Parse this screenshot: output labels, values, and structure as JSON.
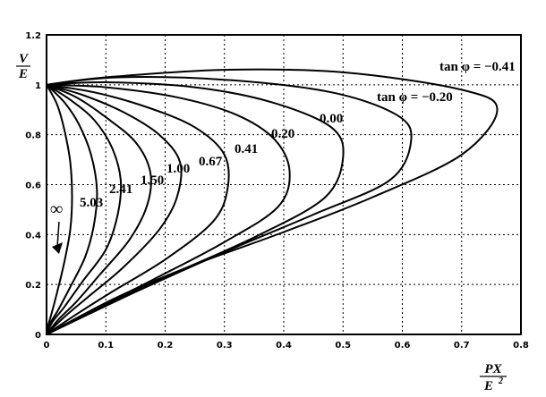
{
  "chart_data": {
    "type": "line",
    "title": "",
    "xlabel_num": "PX",
    "xlabel_den": "E",
    "xlabel_den_exp": "2",
    "ylabel_num": "V",
    "ylabel_den": "E",
    "xlim": [
      0,
      0.8
    ],
    "ylim": [
      0,
      1.2
    ],
    "x_ticks": [
      "0",
      "0.1",
      "0.2",
      "0.3",
      "0.4",
      "0.5",
      "0.6",
      "0.7",
      "0.8"
    ],
    "y_ticks": [
      "0",
      "0.2",
      "0.4",
      "0.6",
      "0.8",
      "1",
      "1.2"
    ],
    "grid": true,
    "annotation_tan_neg041": "tan φ = −0.41",
    "annotation_tan_neg020": "tan φ = −0.20",
    "annotation_infinity": "∞",
    "series": [
      {
        "name": "-0.41",
        "x": [
          0,
          0.1,
          0.3,
          0.5,
          0.7,
          0.76,
          0.7,
          0.55,
          0.4,
          0.25,
          0.12,
          0
        ],
        "y": [
          1.0,
          1.03,
          1.06,
          1.05,
          0.98,
          0.9,
          0.72,
          0.55,
          0.41,
          0.28,
          0.15,
          0
        ]
      },
      {
        "name": "-0.20",
        "x": [
          0,
          0.12,
          0.3,
          0.48,
          0.59,
          0.615,
          0.58,
          0.45,
          0.3,
          0.15,
          0
        ],
        "y": [
          1.0,
          1.03,
          1.02,
          0.97,
          0.88,
          0.78,
          0.62,
          0.48,
          0.33,
          0.17,
          0
        ]
      },
      {
        "name": "0.00",
        "x": [
          0,
          0.1,
          0.25,
          0.38,
          0.48,
          0.5,
          0.47,
          0.36,
          0.22,
          0.1,
          0
        ],
        "y": [
          1.0,
          1.01,
          0.99,
          0.93,
          0.83,
          0.71,
          0.55,
          0.4,
          0.25,
          0.12,
          0
        ]
      },
      {
        "name": "0.20",
        "x": [
          0,
          0.1,
          0.22,
          0.32,
          0.385,
          0.41,
          0.39,
          0.3,
          0.18,
          0.08,
          0
        ],
        "y": [
          1.0,
          0.99,
          0.95,
          0.88,
          0.78,
          0.65,
          0.51,
          0.37,
          0.22,
          0.1,
          0
        ]
      },
      {
        "name": "0.41",
        "x": [
          0,
          0.08,
          0.17,
          0.25,
          0.3,
          0.305,
          0.28,
          0.2,
          0.11,
          0.05,
          0
        ],
        "y": [
          1.0,
          0.97,
          0.91,
          0.83,
          0.72,
          0.58,
          0.45,
          0.3,
          0.17,
          0.08,
          0
        ]
      },
      {
        "name": "0.67",
        "x": [
          0,
          0.06,
          0.13,
          0.19,
          0.225,
          0.22,
          0.19,
          0.13,
          0.07,
          0.03,
          0
        ],
        "y": [
          1.0,
          0.96,
          0.89,
          0.8,
          0.69,
          0.55,
          0.42,
          0.27,
          0.15,
          0.07,
          0
        ]
      },
      {
        "name": "1.00",
        "x": [
          0,
          0.05,
          0.1,
          0.15,
          0.175,
          0.17,
          0.14,
          0.09,
          0.05,
          0.02,
          0
        ],
        "y": [
          1.0,
          0.95,
          0.87,
          0.77,
          0.65,
          0.52,
          0.38,
          0.24,
          0.13,
          0.06,
          0
        ]
      },
      {
        "name": "1.50",
        "x": [
          0,
          0.04,
          0.08,
          0.11,
          0.125,
          0.12,
          0.1,
          0.06,
          0.03,
          0.01,
          0
        ],
        "y": [
          1.0,
          0.94,
          0.86,
          0.75,
          0.62,
          0.48,
          0.34,
          0.21,
          0.11,
          0.05,
          0
        ]
      },
      {
        "name": "2.41",
        "x": [
          0,
          0.03,
          0.055,
          0.075,
          0.085,
          0.08,
          0.065,
          0.04,
          0.02,
          0.005,
          0
        ],
        "y": [
          1.0,
          0.93,
          0.84,
          0.72,
          0.58,
          0.44,
          0.31,
          0.19,
          0.1,
          0.04,
          0
        ]
      },
      {
        "name": "5.03",
        "x": [
          0,
          0.018,
          0.03,
          0.04,
          0.043,
          0.04,
          0.03,
          0.018,
          0.008,
          0.002,
          0
        ],
        "y": [
          1.0,
          0.92,
          0.82,
          0.69,
          0.55,
          0.42,
          0.29,
          0.17,
          0.08,
          0.03,
          0
        ]
      }
    ]
  }
}
